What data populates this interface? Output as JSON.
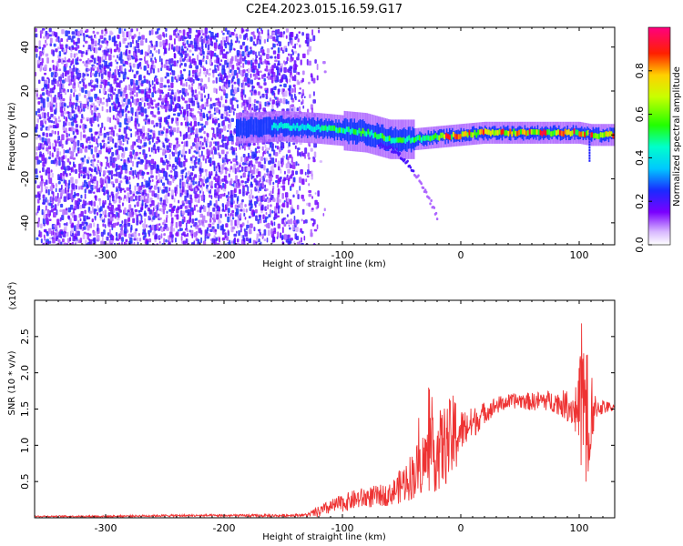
{
  "title": "C2E4.2023.015.16.59.G17",
  "colors": {
    "snr_line": "#ee3333",
    "spectral_low": "#6a00ff",
    "spectral_mid": "#00ff66",
    "spectral_high": "#ff0033"
  },
  "chart_data": [
    {
      "type": "heatmap",
      "xlabel": "Height of straight line (km)",
      "ylabel": "Frequency (Hz)",
      "xlim": [
        -360,
        130
      ],
      "ylim": [
        -50,
        49
      ],
      "x_ticks": [
        -300,
        -200,
        -100,
        0,
        100
      ],
      "y_ticks": [
        -40,
        -20,
        0,
        20,
        40
      ],
      "colorbar": {
        "label": "Normalized spectral amplitude",
        "range": [
          0,
          1
        ],
        "ticks": [
          0.0,
          0.2,
          0.4,
          0.6,
          0.8
        ],
        "colormap": "rainbow (purple-blue-cyan-green-yellow-red-magenta)"
      },
      "regions": [
        {
          "description": "scattered noise across all frequencies",
          "x_range": [
            -360,
            -130
          ],
          "amplitude": [
            0.05,
            0.25
          ]
        },
        {
          "description": "signal trace near 0 Hz",
          "x_range": [
            -190,
            130
          ],
          "y_center": 0,
          "amplitude": [
            0.3,
            0.95
          ]
        },
        {
          "description": "downward tail",
          "x_range": [
            -70,
            -20
          ],
          "y_range": [
            -38,
            -5
          ],
          "amplitude": [
            0.1,
            0.2
          ]
        }
      ],
      "trace": {
        "x": [
          -190,
          -150,
          -120,
          -100,
          -80,
          -60,
          -40,
          -20,
          0,
          20,
          40,
          60,
          80,
          100,
          110,
          130
        ],
        "y": [
          3,
          4,
          3,
          2,
          1,
          -2,
          -2,
          -1,
          0,
          1,
          1,
          1,
          1,
          1,
          0,
          0
        ]
      }
    },
    {
      "type": "line",
      "xlabel": "Height of straight line (km)",
      "ylabel": "SNR (10 * v/v)",
      "y_multiplier": "(x10",
      "y_multiplier_exp": "4",
      "y_multiplier_close": ")",
      "xlim": [
        -360,
        130
      ],
      "ylim": [
        0,
        3.0
      ],
      "x_ticks": [
        -300,
        -200,
        -100,
        0,
        100
      ],
      "y_ticks": [
        0.5,
        1.0,
        1.5,
        2.0,
        2.5
      ],
      "series": [
        {
          "color": "#ee3333",
          "x": [
            -360,
            -300,
            -250,
            -200,
            -150,
            -130,
            -120,
            -110,
            -100,
            -90,
            -80,
            -70,
            -60,
            -50,
            -40,
            -30,
            -20,
            -10,
            0,
            10,
            20,
            30,
            40,
            50,
            60,
            70,
            80,
            90,
            95,
            100,
            105,
            108,
            110,
            115,
            120,
            130
          ],
          "y": [
            0.02,
            0.02,
            0.03,
            0.03,
            0.03,
            0.04,
            0.08,
            0.15,
            0.2,
            0.25,
            0.28,
            0.3,
            0.32,
            0.45,
            0.6,
            0.8,
            0.9,
            1.05,
            1.2,
            1.3,
            1.45,
            1.55,
            1.6,
            1.62,
            1.6,
            1.62,
            1.6,
            1.55,
            1.5,
            1.5,
            1.6,
            0.8,
            1.5,
            1.52,
            1.53,
            1.52
          ],
          "noise_envelope": {
            "x": [
              -360,
              -130,
              -120,
              -100,
              -80,
              -60,
              -40,
              -20,
              -5,
              0,
              20,
              40,
              80,
              95,
              100,
              104,
              107,
              110,
              114,
              130
            ],
            "amplitude": [
              0.01,
              0.02,
              0.08,
              0.12,
              0.15,
              0.15,
              0.35,
              0.55,
              0.6,
              0.3,
              0.15,
              0.1,
              0.15,
              0.25,
              0.6,
              1.3,
              1.4,
              0.6,
              0.15,
              0.04
            ]
          }
        }
      ]
    }
  ]
}
